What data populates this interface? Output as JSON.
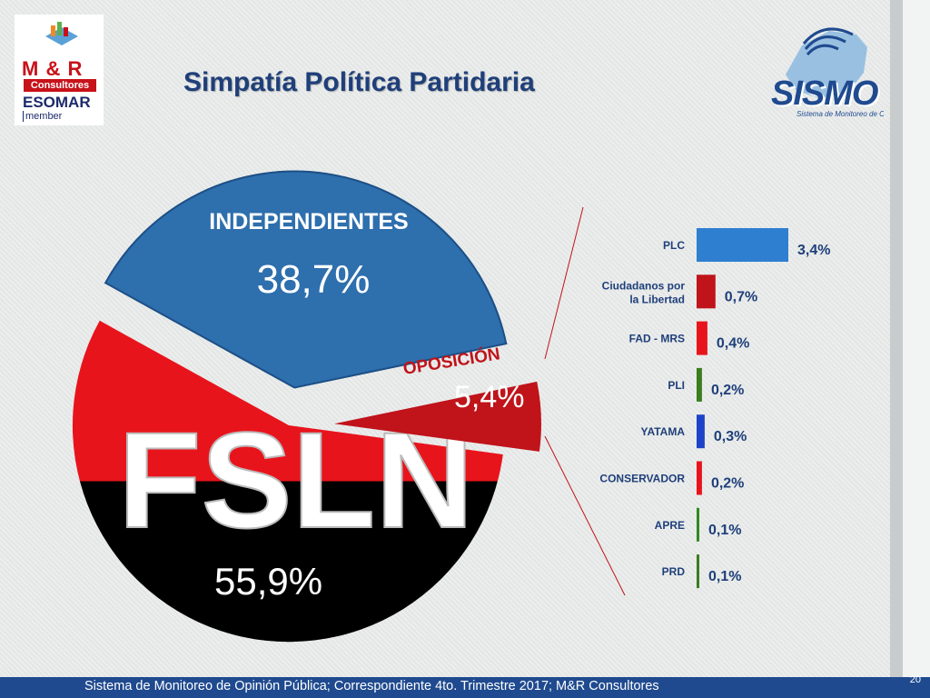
{
  "title": "Simpatía  Política Partidaria",
  "footer": "Sistema de Monitoreo de Opinión Pública; Correspondiente 4to. Trimestre 2017; M&R Consultores",
  "slide_number": "20",
  "logos": {
    "mr": {
      "brand": "M & R",
      "name": "Consultores",
      "assoc": "ESOMAR",
      "member": "member"
    },
    "sismo": {
      "brand": "SISMO",
      "tagline": "Sistema de Monitoreo de Opinión Pública"
    }
  },
  "colors": {
    "fsln_red": "#e8141c",
    "fsln_black": "#000000",
    "independientes": "#2e6fad",
    "oposicion": "#c0131a",
    "title": "#1f3f7a",
    "footer_bar": "#1f4a8f"
  },
  "chart_data": [
    {
      "type": "pie",
      "slices": [
        {
          "label": "INDEPENDIENTES",
          "value": 38.7,
          "display": "38,7%"
        },
        {
          "label": "FSLN",
          "value": 55.9,
          "display": "55,9%"
        },
        {
          "label": "OPOSICIÓN",
          "value": 5.4,
          "display": "5,4%"
        }
      ]
    },
    {
      "type": "bar",
      "orientation": "horizontal",
      "categories": [
        "PLC",
        "Ciudadanos por la Libertad",
        "FAD - MRS",
        "PLI",
        "YATAMA",
        "CONSERVADOR",
        "APRE",
        "PRD"
      ],
      "category_lines": [
        [
          "PLC"
        ],
        [
          "Ciudadanos por",
          "la Libertad"
        ],
        [
          "FAD - MRS"
        ],
        [
          "PLI"
        ],
        [
          "YATAMA"
        ],
        [
          "CONSERVADOR"
        ],
        [
          "APRE"
        ],
        [
          "PRD"
        ]
      ],
      "values": [
        3.4,
        0.7,
        0.4,
        0.2,
        0.3,
        0.2,
        0.1,
        0.1
      ],
      "labels": [
        "3,4%",
        "0,7%",
        "0,4%",
        "0,2%",
        "0,3%",
        "0,2%",
        "0,1%",
        "0,1%"
      ],
      "colors": [
        "#2e7fd0",
        "#c0131a",
        "#e8141c",
        "#3a7d1e",
        "#1d44c8",
        "#e8141c",
        "#2e8a1e",
        "#3a7d1e"
      ],
      "xlim": [
        0,
        3.4
      ]
    }
  ]
}
